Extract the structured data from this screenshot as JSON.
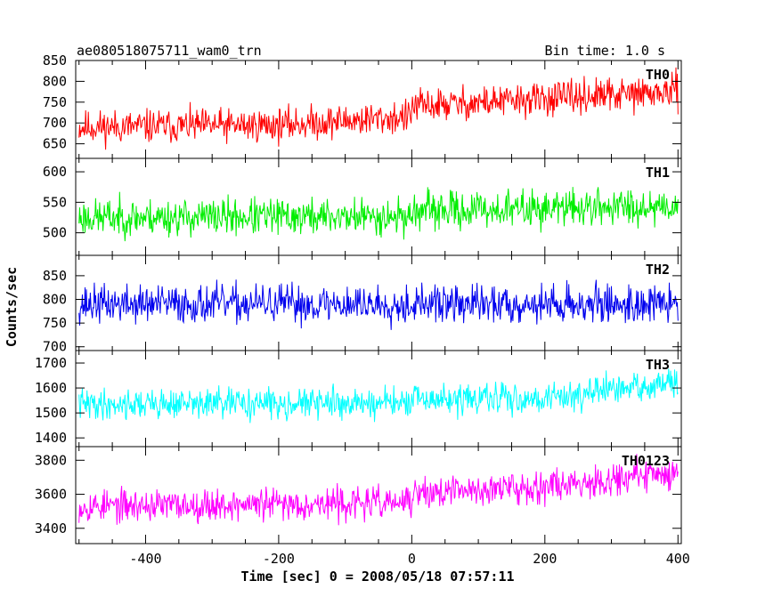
{
  "header": {
    "title": "ae080518075711_wam0_trn",
    "bin_time": "Bin time: 1.0 s"
  },
  "chart_data": {
    "type": "line",
    "xlabel": "Time [sec] 0 = 2008/05/18 07:57:11",
    "ylabel": "Counts/sec",
    "xlim": [
      -505,
      405
    ],
    "x_ticks": [
      -400,
      -200,
      0,
      200,
      400
    ],
    "x_range_data": [
      -500,
      400
    ],
    "panels": [
      {
        "name": "TH0",
        "color": "#ff0000",
        "ylim": [
          615,
          850
        ],
        "y_ticks": [
          650,
          700,
          750,
          800,
          850
        ],
        "trend": [
          [
            -500,
            690
          ],
          [
            -200,
            695
          ],
          [
            -1,
            715
          ],
          [
            0,
            740
          ],
          [
            400,
            775
          ]
        ],
        "noise": 32,
        "seed": 11
      },
      {
        "name": "TH1",
        "color": "#00ee00",
        "ylim": [
          463,
          622
        ],
        "y_ticks": [
          500,
          550,
          600
        ],
        "trend": [
          [
            -500,
            525
          ],
          [
            -1,
            527
          ],
          [
            0,
            535
          ],
          [
            400,
            545
          ]
        ],
        "noise": 24,
        "seed": 23
      },
      {
        "name": "TH2",
        "color": "#0000ee",
        "ylim": [
          692,
          893
        ],
        "y_ticks": [
          700,
          750,
          800,
          850
        ],
        "trend": [
          [
            -500,
            790
          ],
          [
            400,
            790
          ]
        ],
        "noise": 32,
        "seed": 37
      },
      {
        "name": "TH3",
        "color": "#00ffff",
        "ylim": [
          1365,
          1750
        ],
        "y_ticks": [
          1400,
          1500,
          1600,
          1700
        ],
        "trend": [
          [
            -500,
            1535
          ],
          [
            -1,
            1540
          ],
          [
            0,
            1550
          ],
          [
            200,
            1560
          ],
          [
            400,
            1620
          ]
        ],
        "noise": 48,
        "seed": 41
      },
      {
        "name": "TH0123",
        "color": "#ff00ff",
        "ylim": [
          3310,
          3880
        ],
        "y_ticks": [
          3400,
          3600,
          3800
        ],
        "trend": [
          [
            -500,
            3530
          ],
          [
            -1,
            3550
          ],
          [
            0,
            3600
          ],
          [
            200,
            3650
          ],
          [
            400,
            3730
          ]
        ],
        "noise": 75,
        "seed": 53
      }
    ]
  }
}
